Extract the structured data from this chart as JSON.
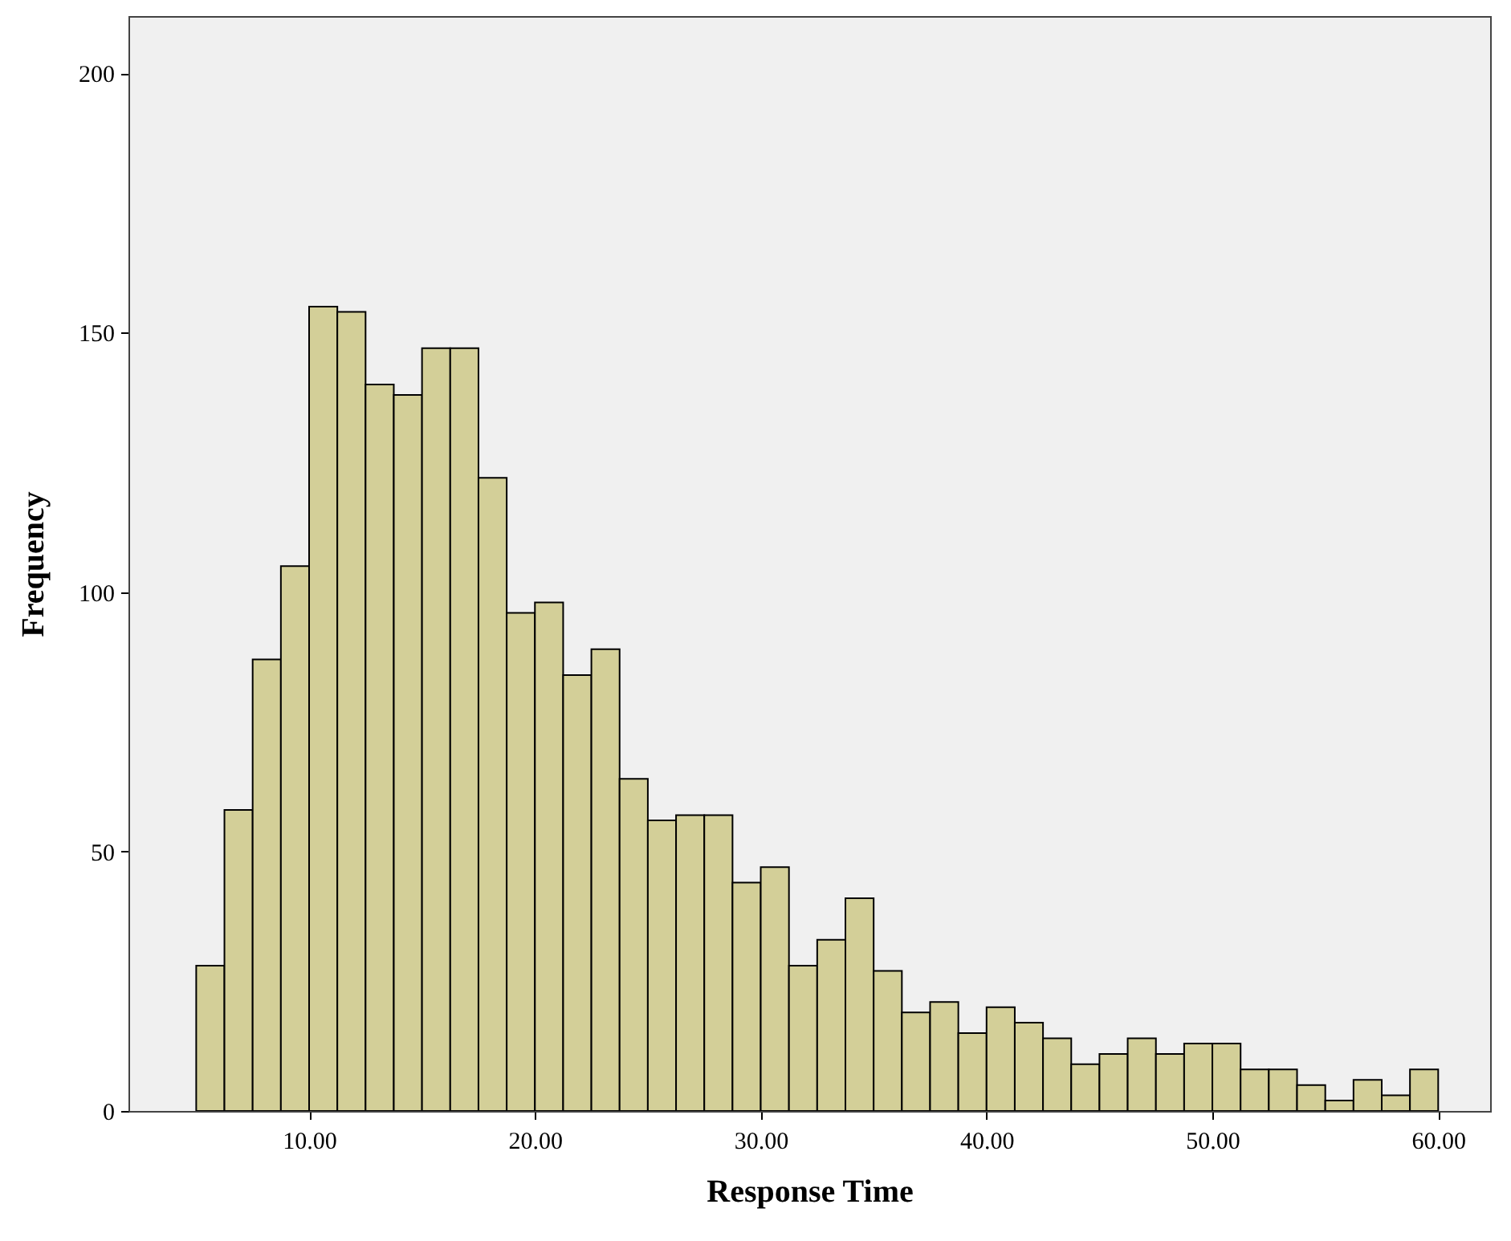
{
  "chart_data": {
    "type": "histogram",
    "xlabel": "Response Time",
    "ylabel": "Frequency",
    "bins": [
      5,
      6.25,
      7.5,
      8.75,
      10,
      11.25,
      12.5,
      13.75,
      15,
      16.25,
      17.5,
      18.75,
      20,
      21.25,
      22.5,
      23.75,
      25,
      26.25,
      27.5,
      28.75,
      30,
      31.25,
      32.5,
      33.75,
      35,
      36.25,
      37.5,
      38.75,
      40,
      41.25,
      42.5,
      43.75,
      45,
      46.25,
      47.5,
      48.75,
      50,
      51.25,
      52.5,
      53.75,
      55,
      56.25,
      57.5,
      58.75,
      60
    ],
    "values": [
      28,
      58,
      87,
      105,
      155,
      154,
      140,
      138,
      147,
      147,
      122,
      96,
      98,
      84,
      89,
      64,
      56,
      57,
      57,
      44,
      47,
      28,
      33,
      41,
      27,
      19,
      21,
      15,
      20,
      17,
      14,
      9,
      11,
      14,
      11,
      13,
      13,
      8,
      8,
      5,
      2,
      6,
      3,
      8
    ],
    "color": "#d3cf98",
    "xlim": [
      2,
      62.3
    ],
    "ylim": [
      0,
      211
    ],
    "xticks": [
      {
        "value": 10,
        "label": "10.00"
      },
      {
        "value": 20,
        "label": "20.00"
      },
      {
        "value": 30,
        "label": "30.00"
      },
      {
        "value": 40,
        "label": "40.00"
      },
      {
        "value": 50,
        "label": "50.00"
      },
      {
        "value": 60,
        "label": "60.00"
      }
    ],
    "yticks": [
      0,
      50,
      100,
      150,
      200
    ],
    "grid": false
  }
}
